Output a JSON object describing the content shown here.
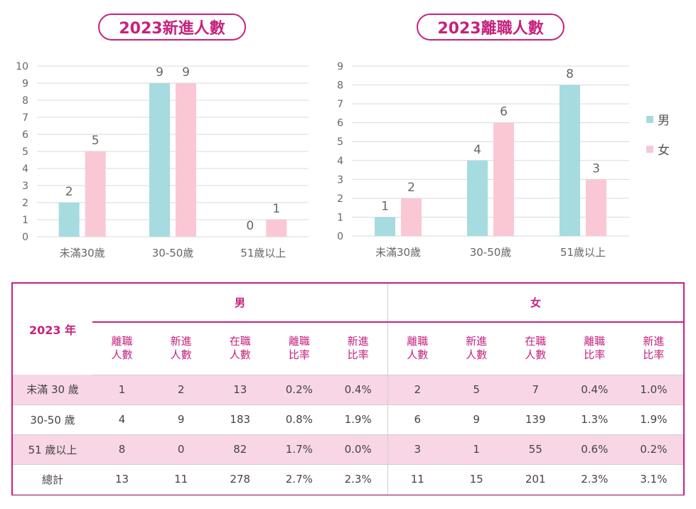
{
  "charts": [
    {
      "title": "2023新進人數",
      "chart_data": {
        "type": "bar",
        "title": "2023新進人數",
        "categories": [
          "未滿30歲",
          "30-50歲",
          "51歲以上"
        ],
        "series": [
          {
            "name": "男",
            "values": [
              2,
              9,
              0
            ],
            "color": "#a6dbe0"
          },
          {
            "name": "女",
            "values": [
              5,
              9,
              1
            ],
            "color": "#f9c8d4"
          }
        ],
        "ylim": [
          0,
          10
        ],
        "yticks": [
          0,
          1,
          2,
          3,
          4,
          5,
          6,
          7,
          8,
          9,
          10
        ],
        "grid": true
      }
    },
    {
      "title": "2023離職人數",
      "chart_data": {
        "type": "bar",
        "title": "2023離職人數",
        "categories": [
          "未滿30歲",
          "30-50歲",
          "51歲以上"
        ],
        "series": [
          {
            "name": "男",
            "values": [
              1,
              4,
              8
            ],
            "color": "#a6dbe0"
          },
          {
            "name": "女",
            "values": [
              2,
              6,
              3
            ],
            "color": "#f9c8d4"
          }
        ],
        "ylim": [
          0,
          9
        ],
        "yticks": [
          0,
          1,
          2,
          3,
          4,
          5,
          6,
          7,
          8,
          9
        ],
        "grid": true,
        "legend": "right"
      }
    }
  ],
  "legend": {
    "male": "男",
    "female": "女"
  },
  "table": {
    "year_label": "2023 年",
    "group_male": "男",
    "group_female": "女",
    "columns": [
      [
        "離職",
        "人數"
      ],
      [
        "新進",
        "人數"
      ],
      [
        "在職",
        "人數"
      ],
      [
        "離職",
        "比率"
      ],
      [
        "新進",
        "比率"
      ],
      [
        "離職",
        "人數"
      ],
      [
        "新進",
        "人數"
      ],
      [
        "在職",
        "人數"
      ],
      [
        "離職",
        "比率"
      ],
      [
        "新進",
        "比率"
      ]
    ],
    "rows": [
      {
        "label": "未滿 30 歲",
        "cells": [
          "1",
          "2",
          "13",
          "0.2%",
          "0.4%",
          "2",
          "5",
          "7",
          "0.4%",
          "1.0%"
        ]
      },
      {
        "label": "30-50 歲",
        "cells": [
          "4",
          "9",
          "183",
          "0.8%",
          "1.9%",
          "6",
          "9",
          "139",
          "1.3%",
          "1.9%"
        ]
      },
      {
        "label": "51 歲以上",
        "cells": [
          "8",
          "0",
          "82",
          "1.7%",
          "0.0%",
          "3",
          "1",
          "55",
          "0.6%",
          "0.2%"
        ]
      },
      {
        "label": "總計",
        "cells": [
          "13",
          "11",
          "278",
          "2.7%",
          "2.3%",
          "11",
          "15",
          "201",
          "2.3%",
          "3.1%"
        ]
      }
    ]
  }
}
